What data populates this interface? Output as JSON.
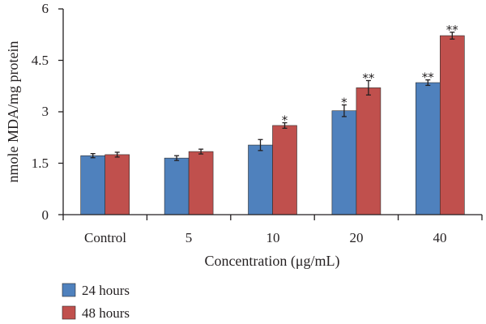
{
  "chart_data": {
    "type": "bar",
    "categories": [
      "Control",
      "5",
      "10",
      "20",
      "40"
    ],
    "series": [
      {
        "name": "24 hours",
        "color": "#4f81bd",
        "values": [
          1.72,
          1.65,
          2.03,
          3.03,
          3.85
        ],
        "errors": [
          0.06,
          0.07,
          0.16,
          0.17,
          0.08
        ],
        "significance": [
          "",
          "",
          "",
          "*",
          "**"
        ]
      },
      {
        "name": "48 hours",
        "color": "#c0504d",
        "values": [
          1.75,
          1.84,
          2.6,
          3.7,
          5.22
        ],
        "errors": [
          0.07,
          0.07,
          0.08,
          0.21,
          0.1
        ],
        "significance": [
          "",
          "",
          "*",
          "**",
          "**"
        ]
      }
    ],
    "yticks": [
      "0",
      "1.5",
      "3",
      "4.5",
      "6"
    ],
    "ylim": [
      0,
      6
    ],
    "xlabel": "Concentration (μg/mL)",
    "ylabel": "nmole MDA/mg protein",
    "legend_position": "bottom-left",
    "grid": false
  }
}
